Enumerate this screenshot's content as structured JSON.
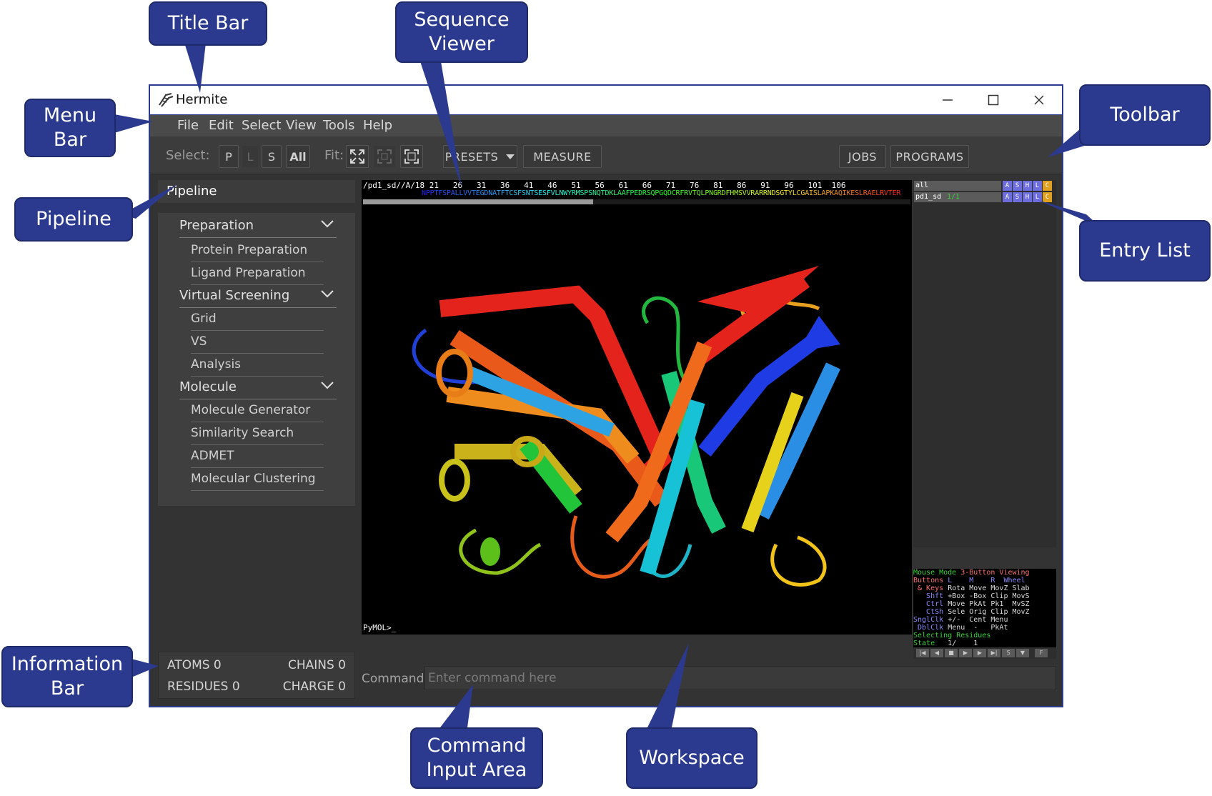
{
  "callouts": {
    "title_bar": "Title Bar",
    "sequence_viewer": "Sequence\nViewer",
    "menu_bar": "Menu\nBar",
    "toolbar": "Toolbar",
    "pipeline": "Pipeline",
    "entry_list": "Entry List",
    "information_bar": "Information\nBar",
    "command_input_area": "Command\nInput Area",
    "workspace": "Workspace"
  },
  "window": {
    "title": "Hermite",
    "controls": {
      "minimize": "—",
      "maximize": "☐",
      "close": "✕"
    }
  },
  "menu": [
    "File",
    "Edit",
    "Select",
    "View",
    "Tools",
    "Help"
  ],
  "toolbar": {
    "select_label": "Select:",
    "select_buttons": [
      "P",
      "L",
      "S",
      "All"
    ],
    "fit_label": "Fit:",
    "presets": "PRESETS",
    "measure": "MEASURE",
    "jobs": "JOBS",
    "programs": "PROGRAMS"
  },
  "pipeline": {
    "title": "Pipeline",
    "groups": [
      {
        "label": "Preparation",
        "items": [
          "Protein Preparation",
          "Ligand Preparation"
        ]
      },
      {
        "label": "Virtual Screening",
        "items": [
          "Grid",
          "VS",
          "Analysis"
        ]
      },
      {
        "label": "Molecule",
        "items": [
          "Molecule Generator",
          "Similarity Search",
          "ADMET",
          "Molecular Clustering"
        ]
      }
    ]
  },
  "info": {
    "atoms": "ATOMS 0",
    "chains": "CHAINS 0",
    "residues": "RESIDUES 0",
    "charge": "CHARGE 0"
  },
  "sequence": {
    "positions": "/pd1_sd//A/18 21   26   31   36   41   46   51   56   61   66   71   76   81   86   91   96   101  106",
    "residues": "NPPTFSPALLVVTEGDNATFTCSFSNTSESFVLNWYRMSPSNQTDKLAAFPEDRSQPGQDCRFRVTQLPNGRDFHMSVVRARRNDSGTYLCGAISLAPKAQIKESLRAELRVTER",
    "scroll_thumb_fraction": 0.42
  },
  "entries": [
    {
      "name": "all",
      "state": "",
      "buttons": [
        "A",
        "S",
        "H",
        "L",
        "C"
      ]
    },
    {
      "name": "pd1_sd",
      "state": "1/1",
      "buttons": [
        "A",
        "S",
        "H",
        "L",
        "C"
      ]
    }
  ],
  "mouse_panel": {
    "line1a": "Mouse Mode",
    "line1b": "3-Button Viewing",
    "line2a": "Buttons",
    "line2b": "L    M    R  Wheel",
    "line3a": " & Keys",
    "line3b": "Rota Move MovZ Slab",
    "line4a": "   Shft",
    "line4b": "+Box -Box Clip MovS",
    "line5a": "   Ctrl",
    "line5b": "Move PkAt Pk1  MvSZ",
    "line6a": "   CtSh",
    "line6b": "Sele Orig Clip MovZ",
    "line7a": "SnglClk",
    "line7b": "+/-  Cent Menu",
    "line8a": " DblClk",
    "line8b": "Menu  -   PkAt",
    "line9": "Selecting Residues",
    "line10a": "State",
    "line10b": "   1/    1"
  },
  "pymol_prompt": "PyMOL>_",
  "command": {
    "label": "Command:",
    "placeholder": "Enter command here"
  },
  "colors": {
    "accent": "#2b3a8f",
    "app_bg": "#333333",
    "viewer_bg": "#000000"
  }
}
